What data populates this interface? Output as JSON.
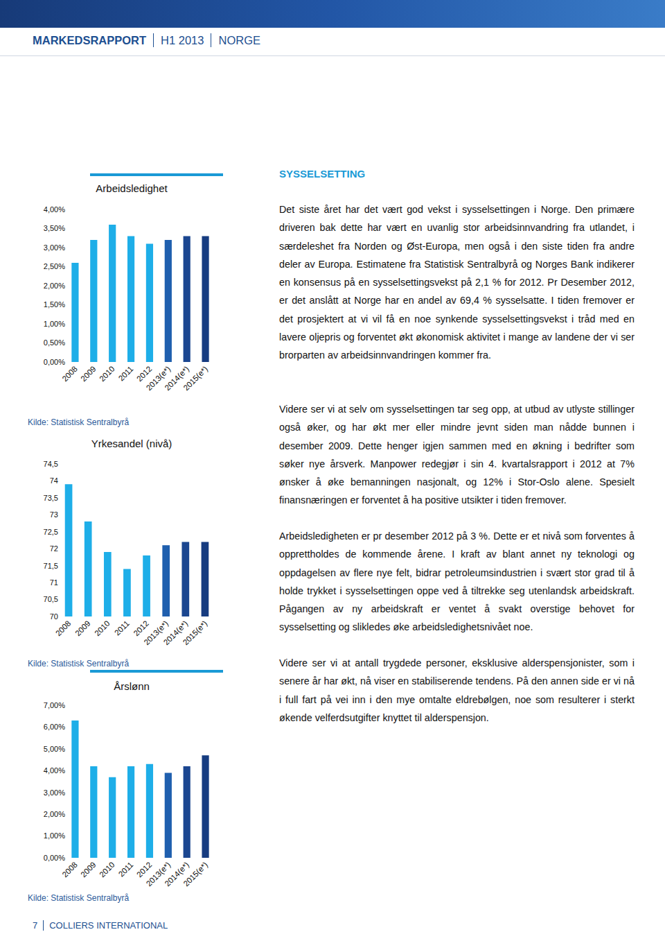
{
  "header": {
    "parts": [
      "MARKEDSRAPPORT",
      "H1 2013",
      "NORGE"
    ]
  },
  "chart_data": [
    {
      "type": "bar",
      "title": "Arbeidsledighet",
      "categories": [
        "2008",
        "2009",
        "2010",
        "2011",
        "2012",
        "2013(e*)",
        "2014(e*)",
        "2015(e*)"
      ],
      "values": [
        2.6,
        3.2,
        3.6,
        3.3,
        3.1,
        3.2,
        3.3,
        3.3
      ],
      "colors": [
        "#1eaee8",
        "#1eaee8",
        "#1eaee8",
        "#1eaee8",
        "#1eaee8",
        "#1f5fae",
        "#1b4690",
        "#173c80"
      ],
      "ylim": [
        0,
        4
      ],
      "yticks": [
        {
          "value": 0,
          "label": "0,00%"
        },
        {
          "value": 0.5,
          "label": "0,50%"
        },
        {
          "value": 1,
          "label": "1,00%"
        },
        {
          "value": 1.5,
          "label": "1,50%"
        },
        {
          "value": 2,
          "label": "2,00%"
        },
        {
          "value": 2.5,
          "label": "2,50%"
        },
        {
          "value": 3,
          "label": "3,00%"
        },
        {
          "value": 3.5,
          "label": "3,50%"
        },
        {
          "value": 4,
          "label": "4,00%"
        }
      ],
      "grid": false,
      "annotations": [
        "Kilde: Statistisk Sentralbyrå"
      ]
    },
    {
      "type": "bar",
      "title": "Yrkesandel (nivå)",
      "categories": [
        "2008",
        "2009",
        "2010",
        "2011",
        "2012",
        "2013(e*)",
        "2014(e*)",
        "2015(e*)"
      ],
      "values": [
        73.9,
        72.8,
        71.9,
        71.4,
        71.8,
        72.1,
        72.2,
        72.2
      ],
      "colors": [
        "#1eaee8",
        "#1eaee8",
        "#1eaee8",
        "#1eaee8",
        "#1eaee8",
        "#1f5fae",
        "#1b4690",
        "#173c80"
      ],
      "ylim": [
        70,
        74.5
      ],
      "yticks": [
        70,
        {
          "value": 70.5,
          "label": "70,5"
        },
        71,
        {
          "value": 71.5,
          "label": "71,5"
        },
        72,
        {
          "value": 72.5,
          "label": "72,5"
        },
        73,
        {
          "value": 73.5,
          "label": "73,5"
        },
        74,
        {
          "value": 74.5,
          "label": "74,5"
        }
      ],
      "grid": false,
      "annotations": [
        "Kilde: Statistisk Sentralbyrå"
      ]
    },
    {
      "type": "bar",
      "title": "Årslønn",
      "categories": [
        "2008",
        "2009",
        "2010",
        "2011",
        "2012",
        "2013(e*)",
        "2014(e*)",
        "2015(e*)"
      ],
      "values": [
        6.3,
        4.2,
        3.7,
        4.2,
        4.3,
        3.9,
        4.2,
        4.7
      ],
      "colors": [
        "#1eaee8",
        "#1eaee8",
        "#1eaee8",
        "#1eaee8",
        "#1eaee8",
        "#1f5fae",
        "#1b4690",
        "#173c80"
      ],
      "ylim": [
        0,
        7
      ],
      "yticks": [
        {
          "value": 0,
          "label": "0,00%"
        },
        {
          "value": 1,
          "label": "1,00%"
        },
        {
          "value": 2,
          "label": "2,00%"
        },
        {
          "value": 3,
          "label": "3,00%"
        },
        {
          "value": 4,
          "label": "4,00%"
        },
        {
          "value": 5,
          "label": "5,00%"
        },
        {
          "value": 6,
          "label": "6,00%"
        },
        {
          "value": 7,
          "label": "7,00%"
        }
      ],
      "grid": false,
      "annotations": [
        "Kilde: Statistisk Sentralbyrå"
      ]
    }
  ],
  "section": {
    "heading": "SYSSELSETTING",
    "paragraphs": [
      "Det siste året har det vært god vekst i sysselsettingen i Norge. Den primære driveren bak dette har vært en uvanlig stor arbeidsinnvandring fra utlandet, i særdeleshet fra Norden og Øst-Europa, men også i den siste tiden fra andre deler av Europa. Estimatene fra Statistisk Sentralbyrå og Norges Bank indikerer en konsensus på en sysselsettingsvekst på 2,1 % for 2012. Pr Desember 2012, er det anslått at Norge har en andel av 69,4 % sysselsatte. I tiden fremover er det prosjektert at vi vil få en noe synkende sysselsettingsvekst i tråd med en lavere oljepris og forventet økt økonomisk aktivitet i mange av landene der vi ser brorparten av arbeidsinnvandringen kommer fra.",
      "Videre ser vi at selv om sysselsettingen tar seg opp, at utbud av utlyste stillinger også øker, og har økt mer eller mindre jevnt siden man nådde bunnen i desember 2009. Dette henger igjen sammen med en økning i bedrifter som søker nye årsverk. Manpower redegjør i sin 4. kvartalsrapport i 2012 at 7% ønsker å øke bemanningen nasjonalt, og 12% i Stor-Oslo alene. Spesielt finansnæringen er forventet å ha positive utsikter i tiden fremover.",
      "Arbeidsledigheten er pr desember 2012 på 3 %. Dette er et nivå som forventes å opprettholdes de kommende årene. I kraft av blant annet ny teknologi og oppdagelsen av flere nye felt, bidrar petroleumsindustrien i svært stor grad til å holde trykket i sysselsettingen oppe ved å tiltrekke seg utenlandsk arbeidskraft. Pågangen av ny arbeidskraft er ventet å svakt overstige behovet for sysselsetting og slikledes øke arbeidsledighetsnivået noe.",
      "Videre ser vi at antall trygdede personer, eksklusive alderspensjonister, som i senere år har økt, nå viser en stabiliserende tendens. På den annen side er vi nå i full fart på vei inn i den mye omtalte eldrebølgen, noe som resulterer i sterkt økende velferdsutgifter knyttet til alderspensjon."
    ]
  },
  "footer": {
    "page": "7",
    "company": "COLLIERS INTERNATIONAL"
  }
}
